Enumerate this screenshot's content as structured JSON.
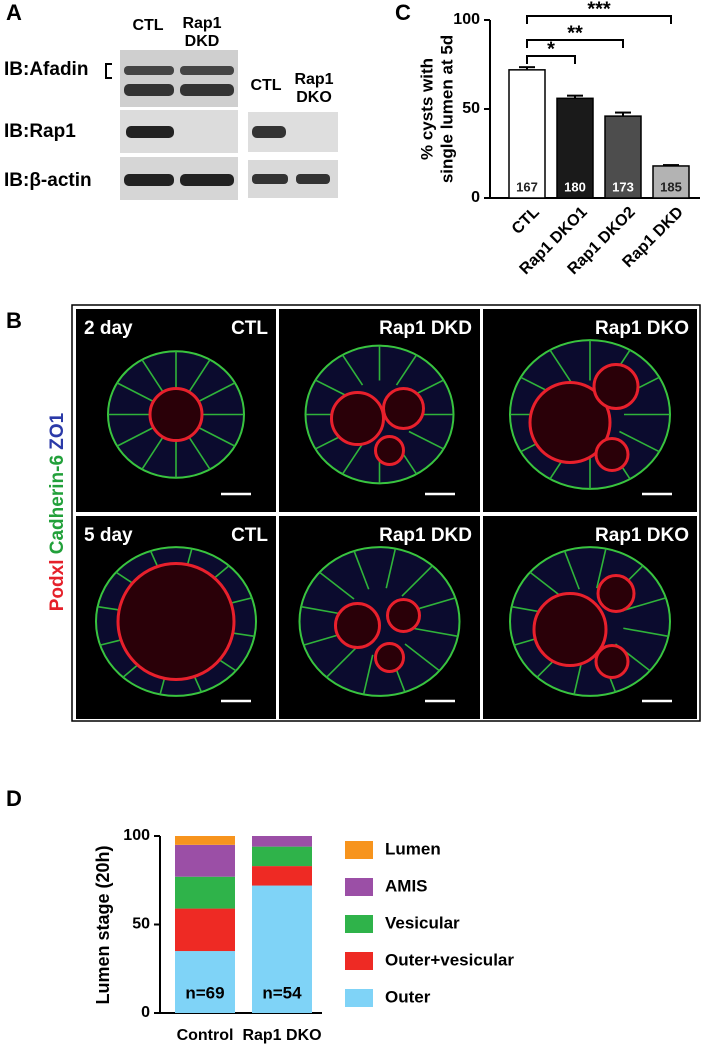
{
  "panel_labels": [
    "A",
    "B",
    "C",
    "D"
  ],
  "blot": {
    "rows": [
      "IB:Afadin",
      "IB:Rap1",
      "IB:β-actin"
    ],
    "left_columns": [
      [
        "CTL"
      ],
      [
        "Rap1",
        "DKD"
      ]
    ],
    "right_columns": [
      [
        "CTL"
      ],
      [
        "Rap1",
        "DKO"
      ]
    ]
  },
  "micrographs": {
    "side_label": [
      "Podxl",
      "Cadherin-6",
      "ZO1"
    ],
    "rows": [
      "2 day",
      "5 day"
    ],
    "columns": [
      "CTL",
      "Rap1 DKD",
      "Rap1 DKO"
    ]
  },
  "chart_data": [
    {
      "type": "bar",
      "ylabel": [
        "% cysts with",
        "single lumen at 5d"
      ],
      "categories": [
        "CTL",
        "Rap1 DKO1",
        "Rap1 DKO2",
        "Rap1 DKD"
      ],
      "values": [
        72,
        56,
        46,
        18
      ],
      "errors": [
        1.5,
        1.5,
        2,
        0.5
      ],
      "colors": [
        "#ffffff",
        "#1a1a1a",
        "#4d4d4d",
        "#b3b3b3"
      ],
      "n": [
        167,
        180,
        173,
        185
      ],
      "significance": [
        "*",
        "**",
        "***"
      ],
      "ylim": [
        0,
        100
      ],
      "yticks": [
        0,
        50,
        100
      ]
    },
    {
      "type": "stacked_bar",
      "ylabel": "Lumen stage (20h)",
      "categories": [
        "Control",
        "Rap1 DKO"
      ],
      "series": [
        {
          "name": "Outer",
          "color": "#7fd3f7",
          "values": [
            35,
            72
          ]
        },
        {
          "name": "Outer+vesicular",
          "color": "#ee2a24",
          "values": [
            24,
            11
          ]
        },
        {
          "name": "Vesicular",
          "color": "#2fb34a",
          "values": [
            18,
            11
          ]
        },
        {
          "name": "AMIS",
          "color": "#9b4fa6",
          "values": [
            18,
            6
          ]
        },
        {
          "name": "Lumen",
          "color": "#f7941d",
          "values": [
            5,
            0
          ]
        }
      ],
      "n_labels": [
        "n=69",
        "n=54"
      ],
      "ylim": [
        0,
        100
      ],
      "yticks": [
        0,
        50,
        100
      ]
    }
  ]
}
